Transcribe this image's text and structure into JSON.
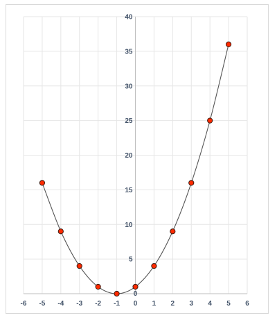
{
  "chart_data": {
    "type": "scatter",
    "x": [
      -5,
      -4,
      -3,
      -2,
      -1,
      0,
      1,
      2,
      3,
      4,
      5
    ],
    "y": [
      16,
      9,
      4,
      1,
      0,
      1,
      4,
      9,
      16,
      25,
      36
    ],
    "xlim": [
      -6,
      6
    ],
    "ylim": [
      0,
      40
    ],
    "x_ticks": [
      -6,
      -5,
      -4,
      -3,
      -2,
      -1,
      0,
      1,
      2,
      3,
      4,
      5,
      6
    ],
    "y_ticks": [
      5,
      10,
      15,
      20,
      25,
      30,
      35,
      40
    ],
    "grid": true,
    "smoothed_line": true,
    "marker_color": "#ff2a00",
    "marker_edge_color": "#3a1a10",
    "line_color": "#555555",
    "grid_color": "#e6e6e6",
    "axis_color": "#bfbfbf",
    "tick_label_color": "#44546a",
    "title": "",
    "xlabel": "",
    "ylabel": ""
  }
}
